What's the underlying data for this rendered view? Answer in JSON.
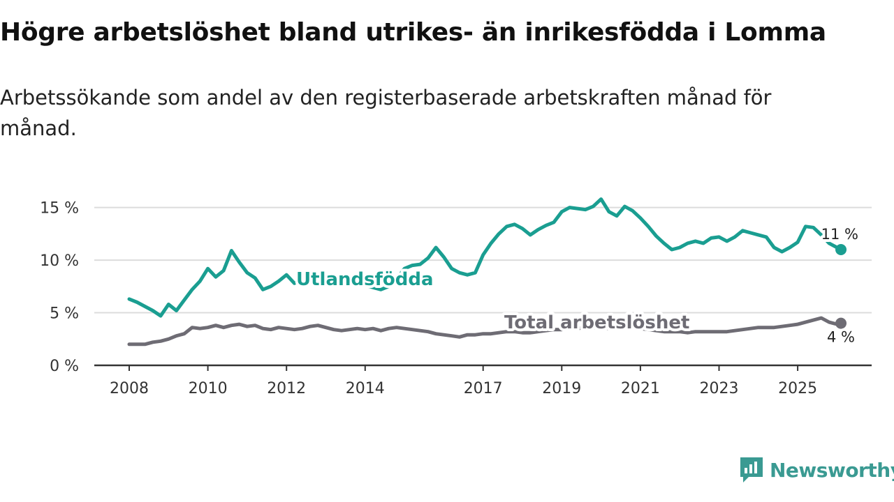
{
  "title": "Högre arbetslöshet bland utrikes- än inrikesfödda i Lomma",
  "subtitle": "Arbetssökande som andel av den registerbaserade arbetskraften månad för månad.",
  "brand": {
    "name": "Newsworthy",
    "color": "#3a9a92"
  },
  "chart_data": {
    "type": "line",
    "title": "Högre arbetslöshet bland utrikes- än inrikesfödda i Lomma",
    "ylabel": "",
    "xlabel": "",
    "ylim": [
      0,
      16.5
    ],
    "xlim": [
      2007.8,
      2026.7
    ],
    "y_ticks": [
      0,
      5,
      10,
      15
    ],
    "y_tick_labels": [
      "0 %",
      "5 %",
      "10 %",
      "15 %"
    ],
    "x_ticks": [
      2008,
      2010,
      2012,
      2014,
      2017,
      2019,
      2021,
      2023,
      2025
    ],
    "x_tick_labels": [
      "2008",
      "2010",
      "2012",
      "2014",
      "2017",
      "2019",
      "2021",
      "2023",
      "2025"
    ],
    "series": [
      {
        "name": "Utlandsfödda",
        "color": "#1a9e91",
        "end_label": "11 %",
        "x": [
          2008.0,
          2008.2,
          2008.4,
          2008.6,
          2008.8,
          2009.0,
          2009.2,
          2009.4,
          2009.6,
          2009.8,
          2010.0,
          2010.2,
          2010.4,
          2010.6,
          2010.8,
          2011.0,
          2011.2,
          2011.4,
          2011.6,
          2011.8,
          2012.0,
          2012.2,
          2012.4,
          2012.6,
          2012.8,
          2013.0,
          2013.2,
          2013.4,
          2013.6,
          2013.8,
          2014.0,
          2014.2,
          2014.4,
          2014.6,
          2014.8,
          2015.0,
          2015.2,
          2015.4,
          2015.6,
          2015.8,
          2016.0,
          2016.2,
          2016.4,
          2016.6,
          2016.8,
          2017.0,
          2017.2,
          2017.4,
          2017.6,
          2017.8,
          2018.0,
          2018.2,
          2018.4,
          2018.6,
          2018.8,
          2019.0,
          2019.2,
          2019.4,
          2019.6,
          2019.8,
          2020.0,
          2020.2,
          2020.4,
          2020.6,
          2020.8,
          2021.0,
          2021.2,
          2021.4,
          2021.6,
          2021.8,
          2022.0,
          2022.2,
          2022.4,
          2022.6,
          2022.8,
          2023.0,
          2023.2,
          2023.4,
          2023.6,
          2023.8,
          2024.0,
          2024.2,
          2024.4,
          2024.6,
          2024.8,
          2025.0,
          2025.2,
          2025.4,
          2025.6,
          2025.8,
          2026.0,
          2026.1
        ],
        "y": [
          6.3,
          6.0,
          5.6,
          5.2,
          4.7,
          5.8,
          5.2,
          6.2,
          7.2,
          8.0,
          9.2,
          8.4,
          9.0,
          10.9,
          9.8,
          8.8,
          8.3,
          7.2,
          7.5,
          8.0,
          8.6,
          7.8,
          8.2,
          8.4,
          8.2,
          8.0,
          8.1,
          7.9,
          7.8,
          8.0,
          7.6,
          7.4,
          7.2,
          7.5,
          8.2,
          9.2,
          9.5,
          9.6,
          10.2,
          11.2,
          10.3,
          9.2,
          8.8,
          8.6,
          8.8,
          10.5,
          11.6,
          12.5,
          13.2,
          13.4,
          13.0,
          12.4,
          12.9,
          13.3,
          13.6,
          14.6,
          15.0,
          14.9,
          14.8,
          15.1,
          15.8,
          14.6,
          14.2,
          15.1,
          14.7,
          14.0,
          13.2,
          12.3,
          11.6,
          11.0,
          11.2,
          11.6,
          11.8,
          11.6,
          12.1,
          12.2,
          11.8,
          12.2,
          12.8,
          12.6,
          12.4,
          12.2,
          11.2,
          10.8,
          11.2,
          11.7,
          13.2,
          13.1,
          12.4,
          11.6,
          11.2,
          11.0
        ]
      },
      {
        "name": "Total arbetslöshet",
        "color": "#6e6c74",
        "end_label": "4 %",
        "x": [
          2008.0,
          2008.2,
          2008.4,
          2008.6,
          2008.8,
          2009.0,
          2009.2,
          2009.4,
          2009.6,
          2009.8,
          2010.0,
          2010.2,
          2010.4,
          2010.6,
          2010.8,
          2011.0,
          2011.2,
          2011.4,
          2011.6,
          2011.8,
          2012.0,
          2012.2,
          2012.4,
          2012.6,
          2012.8,
          2013.0,
          2013.2,
          2013.4,
          2013.6,
          2013.8,
          2014.0,
          2014.2,
          2014.4,
          2014.6,
          2014.8,
          2015.0,
          2015.2,
          2015.4,
          2015.6,
          2015.8,
          2016.0,
          2016.2,
          2016.4,
          2016.6,
          2016.8,
          2017.0,
          2017.2,
          2017.4,
          2017.6,
          2017.8,
          2018.0,
          2018.2,
          2018.4,
          2018.6,
          2018.8,
          2019.0,
          2019.2,
          2019.4,
          2019.6,
          2019.8,
          2020.0,
          2020.2,
          2020.4,
          2020.6,
          2020.8,
          2021.0,
          2021.2,
          2021.4,
          2021.6,
          2021.8,
          2022.0,
          2022.2,
          2022.4,
          2022.6,
          2022.8,
          2023.0,
          2023.2,
          2023.4,
          2023.6,
          2023.8,
          2024.0,
          2024.2,
          2024.4,
          2024.6,
          2024.8,
          2025.0,
          2025.2,
          2025.4,
          2025.6,
          2025.8,
          2026.0,
          2026.1
        ],
        "y": [
          2.0,
          2.0,
          2.0,
          2.2,
          2.3,
          2.5,
          2.8,
          3.0,
          3.6,
          3.5,
          3.6,
          3.8,
          3.6,
          3.8,
          3.9,
          3.7,
          3.8,
          3.5,
          3.4,
          3.6,
          3.5,
          3.4,
          3.5,
          3.7,
          3.8,
          3.6,
          3.4,
          3.3,
          3.4,
          3.5,
          3.4,
          3.5,
          3.3,
          3.5,
          3.6,
          3.5,
          3.4,
          3.3,
          3.2,
          3.0,
          2.9,
          2.8,
          2.7,
          2.9,
          2.9,
          3.0,
          3.0,
          3.1,
          3.2,
          3.2,
          3.1,
          3.1,
          3.2,
          3.3,
          3.4,
          3.4,
          3.5,
          3.5,
          3.6,
          3.6,
          3.6,
          3.5,
          3.5,
          3.6,
          3.6,
          3.5,
          3.4,
          3.3,
          3.2,
          3.2,
          3.2,
          3.1,
          3.2,
          3.2,
          3.2,
          3.2,
          3.2,
          3.3,
          3.4,
          3.5,
          3.6,
          3.6,
          3.6,
          3.7,
          3.8,
          3.9,
          4.1,
          4.3,
          4.5,
          4.1,
          3.9,
          4.0
        ]
      }
    ],
    "annotations": [
      {
        "text": "Utlandsfödda",
        "series": 0
      },
      {
        "text": "Total arbetslöshet",
        "series": 1
      }
    ]
  }
}
